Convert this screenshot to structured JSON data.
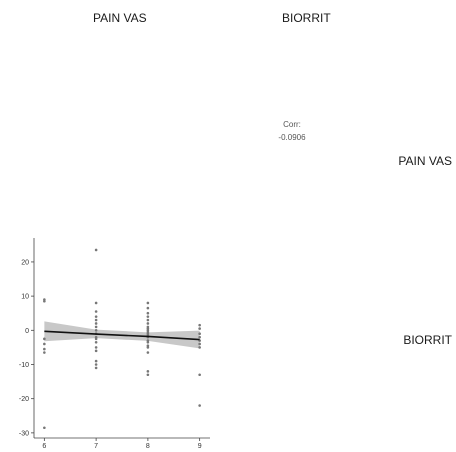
{
  "panel_strips": {
    "columns": [
      "PAIN VAS",
      "BIORRIT"
    ],
    "rows": [
      "PAIN VAS",
      "BIORRIT"
    ]
  },
  "correlation": {
    "label": "Corr:",
    "value": "-0.0906"
  },
  "chart_data": {
    "type": "scatter",
    "title": "",
    "xlabel": "",
    "ylabel": "",
    "xlim": [
      5.8,
      9.2
    ],
    "ylim": [
      -31.5,
      27
    ],
    "x_ticks": [
      "6",
      "7",
      "8",
      "9"
    ],
    "y_ticks": [
      "20",
      "10",
      "0",
      "-10",
      "-20",
      "-30"
    ],
    "y_tick_values": [
      20,
      10,
      0,
      -10,
      -20,
      -30
    ],
    "points": [
      {
        "x": 6,
        "y": 9
      },
      {
        "x": 6,
        "y": 8.5
      },
      {
        "x": 6,
        "y": -2.5
      },
      {
        "x": 6,
        "y": -4
      },
      {
        "x": 6,
        "y": -5.5
      },
      {
        "x": 6,
        "y": -6.5
      },
      {
        "x": 6,
        "y": -28.5
      },
      {
        "x": 7,
        "y": 23.5
      },
      {
        "x": 7,
        "y": 8
      },
      {
        "x": 7,
        "y": 5.5
      },
      {
        "x": 7,
        "y": 4
      },
      {
        "x": 7,
        "y": 3
      },
      {
        "x": 7,
        "y": 2
      },
      {
        "x": 7,
        "y": 1
      },
      {
        "x": 7,
        "y": 0
      },
      {
        "x": 7,
        "y": -1
      },
      {
        "x": 7,
        "y": -2
      },
      {
        "x": 7,
        "y": -2.5
      },
      {
        "x": 7,
        "y": -3.5
      },
      {
        "x": 7,
        "y": -5
      },
      {
        "x": 7,
        "y": -6
      },
      {
        "x": 7,
        "y": -9
      },
      {
        "x": 7,
        "y": -10
      },
      {
        "x": 7,
        "y": -11
      },
      {
        "x": 8,
        "y": 8
      },
      {
        "x": 8,
        "y": 6.5
      },
      {
        "x": 8,
        "y": 5
      },
      {
        "x": 8,
        "y": 4
      },
      {
        "x": 8,
        "y": 3
      },
      {
        "x": 8,
        "y": 2
      },
      {
        "x": 8,
        "y": 1
      },
      {
        "x": 8,
        "y": 0.5
      },
      {
        "x": 8,
        "y": 0
      },
      {
        "x": 8,
        "y": -0.5
      },
      {
        "x": 8,
        "y": -1
      },
      {
        "x": 8,
        "y": -1.5
      },
      {
        "x": 8,
        "y": -2
      },
      {
        "x": 8,
        "y": -3
      },
      {
        "x": 8,
        "y": -3.5
      },
      {
        "x": 8,
        "y": -4.5
      },
      {
        "x": 8,
        "y": -5
      },
      {
        "x": 8,
        "y": -6.5
      },
      {
        "x": 8,
        "y": -12
      },
      {
        "x": 8,
        "y": -13
      },
      {
        "x": 9,
        "y": 1.5
      },
      {
        "x": 9,
        "y": 0.5
      },
      {
        "x": 9,
        "y": -1
      },
      {
        "x": 9,
        "y": -2
      },
      {
        "x": 9,
        "y": -3
      },
      {
        "x": 9,
        "y": -4
      },
      {
        "x": 9,
        "y": -5
      },
      {
        "x": 9,
        "y": -13
      },
      {
        "x": 9,
        "y": -22
      }
    ],
    "fit_line": {
      "x": [
        6,
        7,
        8,
        9
      ],
      "y": [
        -0.3,
        -1.1,
        -1.8,
        -2.7
      ]
    },
    "confidence_band": {
      "x": [
        6,
        7,
        8,
        9
      ],
      "lower": [
        -3.2,
        -2.3,
        -3.1,
        -5.3
      ],
      "upper": [
        2.6,
        0.2,
        -0.6,
        -0.1
      ]
    },
    "grid": false,
    "legend": "none"
  }
}
